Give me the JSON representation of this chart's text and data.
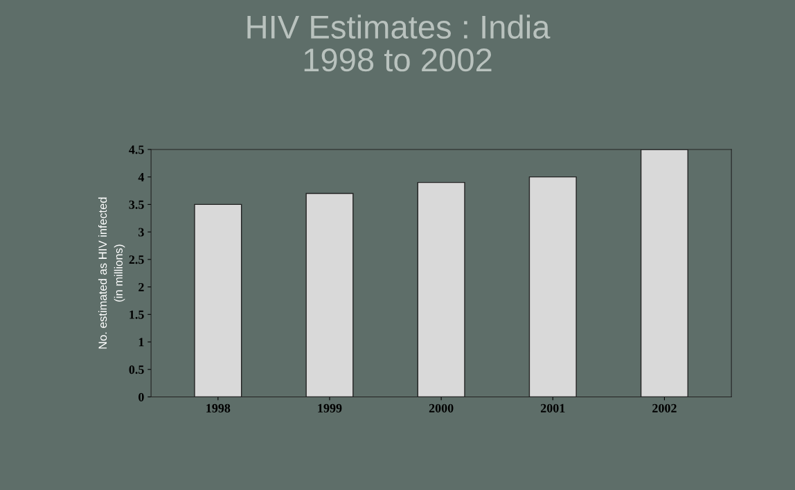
{
  "chart_data": {
    "type": "bar",
    "title": "HIV Estimates : India\n1998 to 2002",
    "ylabel": "No. estimated as HIV infected\n(in millions)",
    "categories": [
      "1998",
      "1999",
      "2000",
      "2001",
      "2002"
    ],
    "values": [
      3.5,
      3.7,
      3.9,
      4.0,
      4.5
    ],
    "color": "#d9d9d9",
    "ylim": [
      0,
      4.5
    ],
    "yticks": [
      0,
      0.5,
      1,
      1.5,
      2,
      2.5,
      3,
      3.5,
      4,
      4.5
    ],
    "grid": false
  }
}
